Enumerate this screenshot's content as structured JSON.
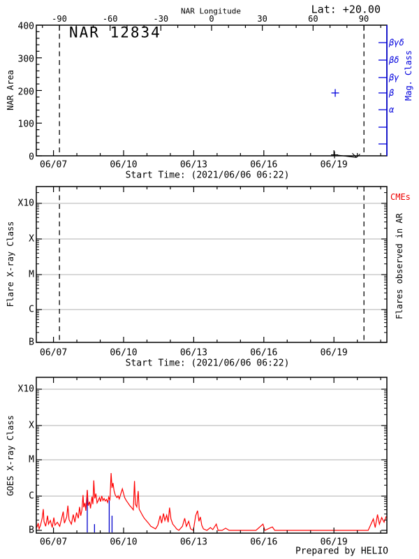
{
  "header": {
    "lat_label": "Lat: +20.00"
  },
  "footer": {
    "credit": "Prepared by HELIO"
  },
  "colors": {
    "axis": "#000000",
    "grid": "#b0b0b0",
    "mag_class_axis": "#0000dd",
    "goes_curve": "#ff0000",
    "cme_label": "#ee0000",
    "flare_marker": "#0000cc"
  },
  "chart_data": [
    {
      "id": "nar-area-panel",
      "type": "scatter",
      "title": "NAR 12834",
      "ylabel": "NAR Area",
      "xlabel": "Start Time: (2021/06/06 06:22)",
      "top_axis_label": "NAR Longitude",
      "right_axis_label": "Mag. Class",
      "x_range_days": [
        0,
        15
      ],
      "x_tick_labels": [
        "06/07",
        "06/10",
        "06/13",
        "06/16",
        "06/19"
      ],
      "x_tick_days": [
        0.735,
        3.735,
        6.735,
        9.735,
        12.735
      ],
      "ylim": [
        0,
        400
      ],
      "y_tick_values": [
        0,
        100,
        200,
        300,
        400
      ],
      "y_tick_labels": [
        "0",
        "100",
        "200",
        "300",
        "400"
      ],
      "top_tick_values": [
        -90,
        -60,
        -30,
        0,
        30,
        60,
        90
      ],
      "top_tick_labels": [
        "-90",
        "-60",
        "-30",
        "0",
        "30",
        "60",
        "90"
      ],
      "limb_crossing_days": [
        0.99,
        14.02
      ],
      "mag_class_levels": [
        "βγδ",
        "βδ",
        "βγ",
        "β",
        "α",
        "",
        ""
      ],
      "area_points": [
        {
          "day": 12.76,
          "area": 3
        }
      ],
      "area_trend_arrow": {
        "from_day": 12.9,
        "from_area": 2,
        "to_day": 13.7,
        "to_area": -5
      },
      "mag_class_points": [
        {
          "day": 12.79,
          "class": "β",
          "level_index": 3
        }
      ]
    },
    {
      "id": "flares-panel",
      "type": "line",
      "ylabel": "Flare X-ray Class",
      "xlabel": "Start Time: (2021/06/06 06:22)",
      "y_tick_labels": [
        "X10",
        "X",
        "M",
        "C",
        "B"
      ],
      "right_label_top": "CMEs",
      "right_label_side": "Flares observed in AR",
      "x_tick_labels": [
        "06/07",
        "06/10",
        "06/13",
        "06/16",
        "06/19"
      ],
      "x_tick_days": [
        0.735,
        3.735,
        6.735,
        9.735,
        12.735
      ],
      "limb_crossing_days": [
        0.99,
        14.02
      ],
      "series": []
    },
    {
      "id": "goes-panel",
      "type": "line",
      "ylabel": "GOES X-ray Class",
      "y_tick_labels": [
        "X10",
        "X",
        "M",
        "C",
        "B"
      ],
      "x_tick_labels": [
        "06/07",
        "06/10",
        "06/13",
        "06/16",
        "06/19"
      ],
      "x_tick_days": [
        0.735,
        3.735,
        6.735,
        9.735,
        12.735
      ],
      "series": [
        {
          "name": "GOES X-ray flux",
          "color": "#ff0000",
          "points": [
            [
              0.02,
              1.2e-07
            ],
            [
              0.08,
              1.6e-07
            ],
            [
              0.12,
              1.1e-07
            ],
            [
              0.18,
              1.4e-07
            ],
            [
              0.25,
              2.2e-07
            ],
            [
              0.3,
              4e-07
            ],
            [
              0.33,
              1.8e-07
            ],
            [
              0.4,
              1.3e-07
            ],
            [
              0.48,
              2.6e-07
            ],
            [
              0.52,
              1.5e-07
            ],
            [
              0.6,
              1.9e-07
            ],
            [
              0.68,
              1.2e-07
            ],
            [
              0.75,
              2.3e-07
            ],
            [
              0.8,
              1.4e-07
            ],
            [
              0.9,
              1.7e-07
            ],
            [
              1.0,
              1.3e-07
            ],
            [
              1.08,
              2.1e-07
            ],
            [
              1.15,
              3.4e-07
            ],
            [
              1.2,
              1.6e-07
            ],
            [
              1.3,
              2.4e-07
            ],
            [
              1.35,
              5e-07
            ],
            [
              1.4,
              2e-07
            ],
            [
              1.5,
              1.5e-07
            ],
            [
              1.58,
              2.8e-07
            ],
            [
              1.65,
              1.7e-07
            ],
            [
              1.72,
              3.2e-07
            ],
            [
              1.8,
              2.2e-07
            ],
            [
              1.85,
              4.6e-07
            ],
            [
              1.9,
              2.6e-07
            ],
            [
              1.95,
              3.8e-07
            ],
            [
              2.0,
              1e-06
            ],
            [
              2.03,
              4.5e-07
            ],
            [
              2.08,
              6e-07
            ],
            [
              2.12,
              3.6e-07
            ],
            [
              2.18,
              1.4e-06
            ],
            [
              2.22,
              5e-07
            ],
            [
              2.28,
              6.5e-07
            ],
            [
              2.32,
              4.2e-07
            ],
            [
              2.38,
              9e-07
            ],
            [
              2.42,
              5.5e-07
            ],
            [
              2.46,
              2.6e-06
            ],
            [
              2.5,
              8e-07
            ],
            [
              2.55,
              1.1e-06
            ],
            [
              2.6,
              6e-07
            ],
            [
              2.65,
              7e-07
            ],
            [
              2.7,
              8.5e-07
            ],
            [
              2.75,
              6.5e-07
            ],
            [
              2.8,
              9.5e-07
            ],
            [
              2.85,
              7e-07
            ],
            [
              2.9,
              8e-07
            ],
            [
              2.95,
              6.8e-07
            ],
            [
              3.0,
              7.5e-07
            ],
            [
              3.05,
              6.2e-07
            ],
            [
              3.1,
              8.8e-07
            ],
            [
              3.15,
              7e-07
            ],
            [
              3.2,
              4.2e-06
            ],
            [
              3.24,
              1.6e-06
            ],
            [
              3.28,
              2.2e-06
            ],
            [
              3.33,
              1.3e-06
            ],
            [
              3.38,
              1e-06
            ],
            [
              3.45,
              8.5e-07
            ],
            [
              3.5,
              9.5e-07
            ],
            [
              3.55,
              7.8e-07
            ],
            [
              3.62,
              1.1e-06
            ],
            [
              3.68,
              1.5e-06
            ],
            [
              3.72,
              1.2e-06
            ],
            [
              3.78,
              8.5e-07
            ],
            [
              3.85,
              7e-07
            ],
            [
              3.92,
              6e-07
            ],
            [
              4.0,
              5e-07
            ],
            [
              4.08,
              4.4e-07
            ],
            [
              4.15,
              3.8e-07
            ],
            [
              4.2,
              2.5e-06
            ],
            [
              4.24,
              5.5e-07
            ],
            [
              4.3,
              4.6e-07
            ],
            [
              4.36,
              1.3e-06
            ],
            [
              4.4,
              4e-07
            ],
            [
              4.48,
              3.2e-07
            ],
            [
              4.55,
              2.6e-07
            ],
            [
              4.62,
              2.2e-07
            ],
            [
              4.7,
              1.9e-07
            ],
            [
              4.8,
              1.6e-07
            ],
            [
              4.9,
              1.3e-07
            ],
            [
              5.0,
              1.2e-07
            ],
            [
              5.1,
              1.1e-07
            ],
            [
              5.2,
              1.4e-07
            ],
            [
              5.3,
              2.6e-07
            ],
            [
              5.36,
              1.6e-07
            ],
            [
              5.44,
              3e-07
            ],
            [
              5.5,
              1.9e-07
            ],
            [
              5.58,
              2.7e-07
            ],
            [
              5.64,
              1.7e-07
            ],
            [
              5.7,
              4.4e-07
            ],
            [
              5.76,
              2.1e-07
            ],
            [
              5.84,
              1.5e-07
            ],
            [
              5.92,
              1.3e-07
            ],
            [
              6.0,
              1.1e-07
            ],
            [
              6.1,
              1e-07
            ],
            [
              6.25,
              1.3e-07
            ],
            [
              6.35,
              2.2e-07
            ],
            [
              6.42,
              1.3e-07
            ],
            [
              6.52,
              1.8e-07
            ],
            [
              6.6,
              1.1e-07
            ],
            [
              6.72,
              1e-07
            ],
            [
              6.82,
              2.6e-07
            ],
            [
              6.9,
              3.6e-07
            ],
            [
              6.96,
              1.8e-07
            ],
            [
              7.02,
              2.4e-07
            ],
            [
              7.08,
              1.4e-07
            ],
            [
              7.15,
              1.1e-07
            ],
            [
              7.3,
              1e-07
            ],
            [
              7.45,
              1.2e-07
            ],
            [
              7.55,
              1.05e-07
            ],
            [
              7.7,
              1.5e-07
            ],
            [
              7.78,
              1e-07
            ],
            [
              7.95,
              1e-07
            ],
            [
              8.1,
              1.15e-07
            ],
            [
              8.25,
              1e-07
            ],
            [
              8.6,
              1e-07
            ],
            [
              9.0,
              1e-07
            ],
            [
              9.4,
              1e-07
            ],
            [
              9.7,
              1.5e-07
            ],
            [
              9.78,
              1e-07
            ],
            [
              10.1,
              1.25e-07
            ],
            [
              10.2,
              1e-07
            ],
            [
              10.6,
              1e-07
            ],
            [
              11.2,
              1e-07
            ],
            [
              12.0,
              1e-07
            ],
            [
              12.8,
              1e-07
            ],
            [
              13.6,
              1e-07
            ],
            [
              14.2,
              1e-07
            ],
            [
              14.42,
              2.1e-07
            ],
            [
              14.5,
              1.2e-07
            ],
            [
              14.6,
              2.8e-07
            ],
            [
              14.68,
              1.5e-07
            ],
            [
              14.78,
              2.3e-07
            ],
            [
              14.88,
              1.7e-07
            ],
            [
              14.97,
              2.5e-07
            ]
          ]
        }
      ],
      "flare_markers": [
        {
          "day": 2.18,
          "peak_flux": 1.3e-06
        },
        {
          "day": 2.49,
          "peak_flux": 1.5e-07
        },
        {
          "day": 3.12,
          "peak_flux": 7e-07
        },
        {
          "day": 3.24,
          "peak_flux": 2.6e-07
        }
      ]
    }
  ]
}
